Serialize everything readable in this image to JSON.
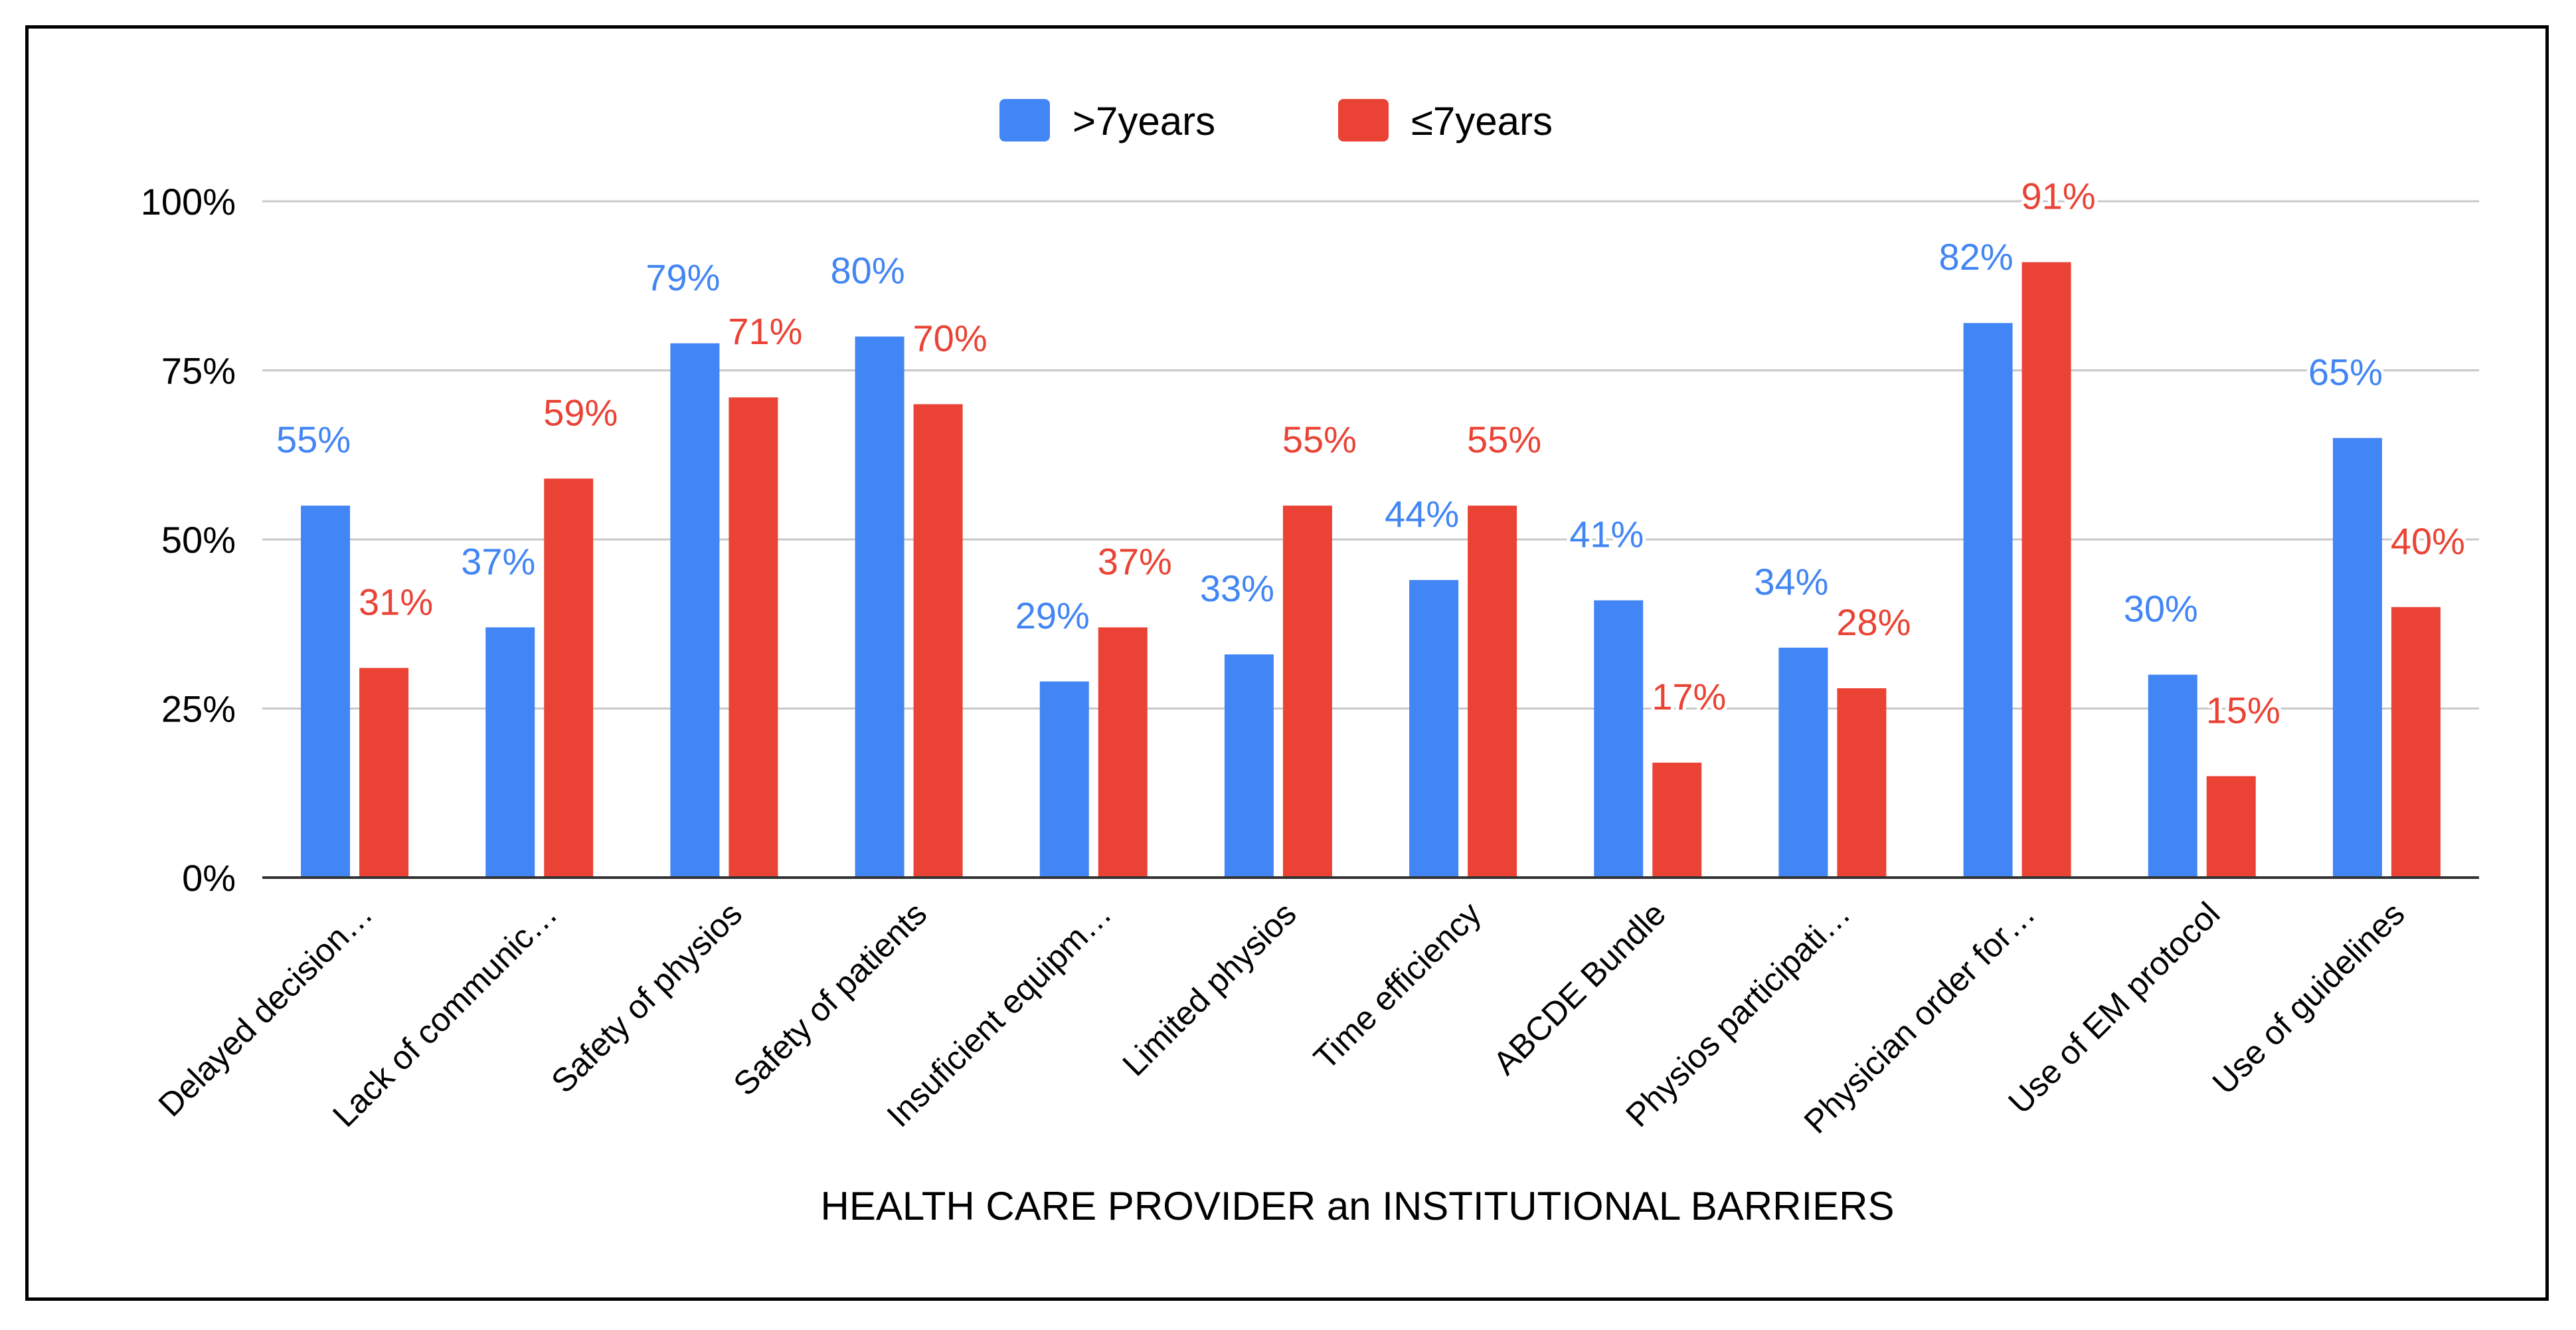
{
  "chart_data": {
    "type": "bar",
    "title": "",
    "xlabel": "HEALTH CARE PROVIDER an INSTITUTIONAL BARRIERS",
    "ylabel": "",
    "ylim": [
      0,
      100
    ],
    "yticks": [
      "0%",
      "25%",
      "50%",
      "75%",
      "100%"
    ],
    "ytick_values": [
      0,
      25,
      50,
      75,
      100
    ],
    "grid": true,
    "legend_position": "top-center",
    "categories": [
      "Delayed decision…",
      "Lack of communic…",
      "Safety of physios",
      "Safety of patients",
      "Insuficient equipm…",
      "Limited physios",
      "Time efficiency",
      "ABCDE Bundle",
      "Physios participati…",
      "Physician order for…",
      "Use of EM protocol",
      "Use of  guidelines"
    ],
    "series": [
      {
        "name": ">7years",
        "color": "#4285f4",
        "values": [
          55,
          37,
          79,
          80,
          29,
          33,
          44,
          41,
          34,
          82,
          30,
          65
        ],
        "labels": [
          "55%",
          "37%",
          "79%",
          "80%",
          "29%",
          "33%",
          "44%",
          "41%",
          "34%",
          "82%",
          "30%",
          "65%"
        ]
      },
      {
        "name": "≤7years",
        "color": "#ea4335",
        "values": [
          31,
          59,
          71,
          70,
          37,
          55,
          55,
          17,
          28,
          91,
          15,
          40
        ],
        "labels": [
          "31%",
          "59%",
          "71%",
          "70%",
          "37%",
          "55%",
          "55%",
          "17%",
          "28%",
          "91%",
          "15%",
          "40%"
        ]
      }
    ]
  }
}
